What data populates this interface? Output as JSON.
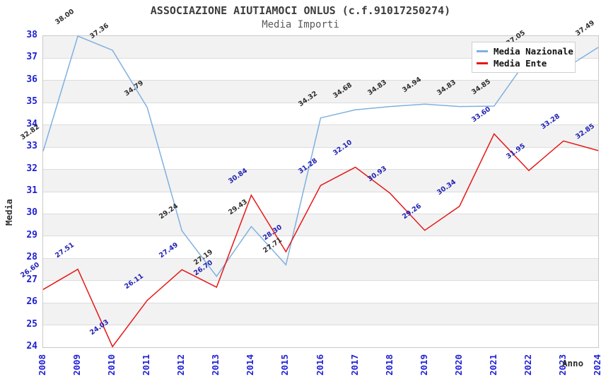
{
  "chart_data": {
    "type": "line",
    "title": "ASSOCIAZIONE AIUTIAMOCI ONLUS (c.f.91017250274)",
    "subtitle": "Media Importi",
    "xlabel": "Anno",
    "ylabel": "Media",
    "x": [
      "2008",
      "2009",
      "2010",
      "2011",
      "2012",
      "2013",
      "2014",
      "2015",
      "2016",
      "2017",
      "2018",
      "2019",
      "2020",
      "2021",
      "2022",
      "2023",
      "2024"
    ],
    "ylim": [
      24,
      38
    ],
    "y_tick_step": 1,
    "grid": true,
    "band_color": "#f2f2f2",
    "axis_tick_color": "#1f1fd6",
    "legend_position": "top-right",
    "series": [
      {
        "name": "Media Nazionale",
        "color": "#7fb0e0",
        "label_color": "#2e2e2e",
        "values": [
          32.82,
          38.0,
          37.36,
          34.79,
          29.24,
          27.19,
          29.43,
          27.71,
          34.32,
          34.68,
          34.83,
          34.94,
          34.83,
          34.85,
          37.05,
          36.5,
          37.49
        ],
        "labels_occluded_by_legend": [
          "2022",
          "2023"
        ]
      },
      {
        "name": "Media Ente",
        "color": "#e61717",
        "label_color": "#2222b4",
        "values": [
          26.6,
          27.51,
          24.03,
          26.11,
          27.49,
          26.7,
          30.84,
          28.3,
          31.28,
          32.1,
          30.93,
          29.26,
          30.34,
          33.6,
          31.95,
          33.28,
          32.85
        ]
      }
    ]
  }
}
